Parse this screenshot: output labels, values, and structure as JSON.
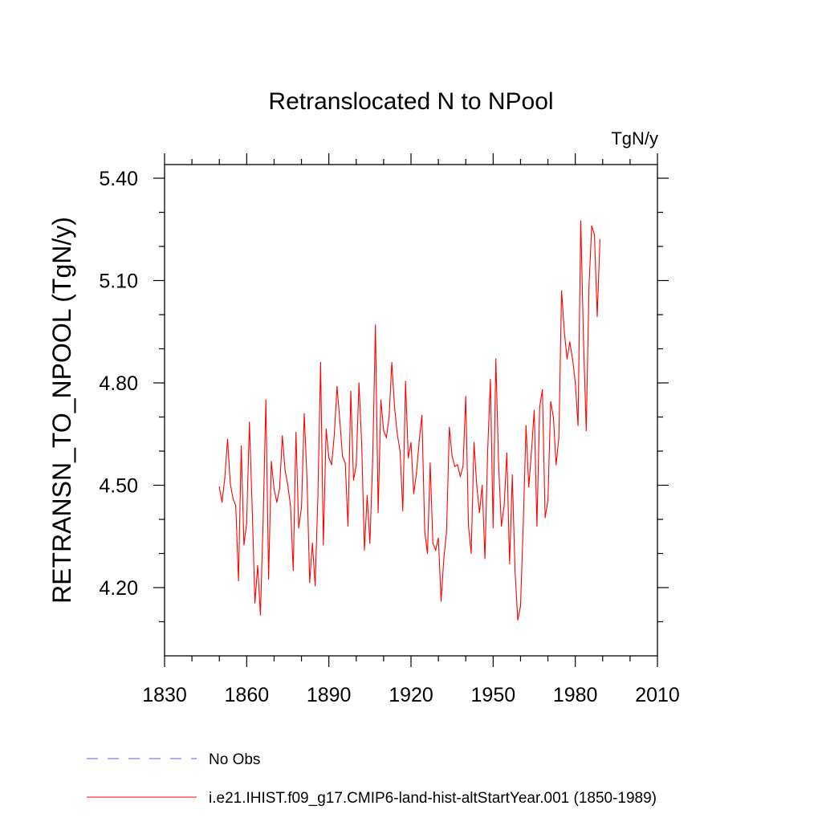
{
  "chart_data": {
    "type": "line",
    "title": "Retranslocated N to NPool",
    "units": "TgN/y",
    "ylabel": "RETRANSN_TO_NPOOL  (TgN/y)",
    "xlabel": "",
    "xlim": [
      1830,
      2010
    ],
    "ylim": [
      4.0,
      5.44
    ],
    "xticks": [
      1830,
      1860,
      1890,
      1920,
      1950,
      1980,
      2010
    ],
    "yticks": [
      4.2,
      4.5,
      4.8,
      5.1,
      5.4
    ],
    "ytick_labels": [
      "4.20",
      "4.50",
      "4.80",
      "5.10",
      "5.40"
    ],
    "grid": false,
    "legend_position": "bottom-left",
    "colors": {
      "model": "#ff0000",
      "obs": "#6a5acd",
      "axis": "#000000"
    },
    "series": [
      {
        "name": "No Obs",
        "style": "dashed",
        "color": "#6a5acd",
        "x": [],
        "y": []
      },
      {
        "name": "i.e21.IHIST.f09_g17.CMIP6-land-hist-altStartYear.001 (1850-1989)",
        "style": "solid",
        "color": "#ff0000",
        "x": [
          1850,
          1851,
          1852,
          1853,
          1854,
          1855,
          1856,
          1857,
          1858,
          1859,
          1860,
          1861,
          1862,
          1863,
          1864,
          1865,
          1866,
          1867,
          1868,
          1869,
          1870,
          1871,
          1872,
          1873,
          1874,
          1875,
          1876,
          1877,
          1878,
          1879,
          1880,
          1881,
          1882,
          1883,
          1884,
          1885,
          1886,
          1887,
          1888,
          1889,
          1890,
          1891,
          1892,
          1893,
          1894,
          1895,
          1896,
          1897,
          1898,
          1899,
          1900,
          1901,
          1902,
          1903,
          1904,
          1905,
          1906,
          1907,
          1908,
          1909,
          1910,
          1911,
          1912,
          1913,
          1914,
          1915,
          1916,
          1917,
          1918,
          1919,
          1920,
          1921,
          1922,
          1923,
          1924,
          1925,
          1926,
          1927,
          1928,
          1929,
          1930,
          1931,
          1932,
          1933,
          1934,
          1935,
          1936,
          1937,
          1938,
          1939,
          1940,
          1941,
          1942,
          1943,
          1944,
          1945,
          1946,
          1947,
          1948,
          1949,
          1950,
          1951,
          1952,
          1953,
          1954,
          1955,
          1956,
          1957,
          1958,
          1959,
          1960,
          1961,
          1962,
          1963,
          1964,
          1965,
          1966,
          1967,
          1968,
          1969,
          1970,
          1971,
          1972,
          1973,
          1974,
          1975,
          1976,
          1977,
          1978,
          1979,
          1980,
          1981,
          1982,
          1983,
          1984,
          1985,
          1986,
          1987,
          1988,
          1989
        ],
        "y": [
          4.495,
          4.45,
          4.52,
          4.635,
          4.505,
          4.46,
          4.44,
          4.22,
          4.615,
          4.325,
          4.39,
          4.685,
          4.43,
          4.155,
          4.265,
          4.12,
          4.395,
          4.75,
          4.225,
          4.57,
          4.49,
          4.45,
          4.49,
          4.645,
          4.545,
          4.5,
          4.44,
          4.25,
          4.655,
          4.375,
          4.435,
          4.71,
          4.52,
          4.215,
          4.33,
          4.205,
          4.465,
          4.86,
          4.325,
          4.665,
          4.58,
          4.56,
          4.65,
          4.79,
          4.69,
          4.585,
          4.565,
          4.38,
          4.775,
          4.515,
          4.56,
          4.8,
          4.62,
          4.31,
          4.47,
          4.33,
          4.57,
          4.97,
          4.42,
          4.75,
          4.66,
          4.64,
          4.7,
          4.86,
          4.73,
          4.65,
          4.6,
          4.425,
          4.805,
          4.58,
          4.625,
          4.475,
          4.535,
          4.63,
          4.705,
          4.365,
          4.3,
          4.565,
          4.33,
          4.31,
          4.345,
          4.16,
          4.285,
          4.365,
          4.67,
          4.585,
          4.555,
          4.56,
          4.525,
          4.555,
          4.76,
          4.38,
          4.3,
          4.625,
          4.5,
          4.42,
          4.5,
          4.285,
          4.6,
          4.81,
          4.375,
          4.87,
          4.56,
          4.38,
          4.44,
          4.595,
          4.27,
          4.53,
          4.25,
          4.105,
          4.145,
          4.39,
          4.675,
          4.495,
          4.6,
          4.72,
          4.38,
          4.73,
          4.78,
          4.405,
          4.455,
          4.745,
          4.7,
          4.56,
          4.64,
          5.07,
          4.95,
          4.87,
          4.92,
          4.87,
          4.8,
          4.675,
          5.275,
          4.925,
          4.66,
          5.08,
          5.26,
          5.235,
          4.995,
          5.22
        ]
      }
    ]
  }
}
